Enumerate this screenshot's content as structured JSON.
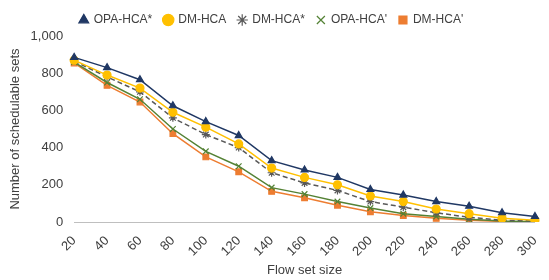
{
  "chart_data": {
    "type": "line",
    "x_label": "Flow set size",
    "y_label": "Number of schedulable sets",
    "categories": [
      20,
      40,
      60,
      80,
      100,
      120,
      140,
      160,
      180,
      200,
      220,
      240,
      260,
      280,
      300
    ],
    "series": [
      {
        "name": "OPA-HCA*",
        "color": "#203864",
        "marker": "triangle",
        "line_style": "solid",
        "values": [
          885,
          830,
          765,
          625,
          540,
          465,
          330,
          280,
          240,
          175,
          145,
          110,
          85,
          50,
          30
        ]
      },
      {
        "name": "DM-HCA",
        "color": "#ffc000",
        "marker": "circle",
        "line_style": "solid",
        "values": [
          870,
          790,
          720,
          590,
          510,
          420,
          290,
          240,
          200,
          140,
          110,
          70,
          45,
          20,
          10
        ]
      },
      {
        "name": "DM-HCA*",
        "color": "#595959",
        "marker": "star",
        "line_style": "dashed",
        "values": [
          865,
          780,
          700,
          560,
          470,
          400,
          265,
          210,
          170,
          110,
          80,
          50,
          25,
          10,
          5
        ]
      },
      {
        "name": "OPA-HCA'",
        "color": "#548235",
        "marker": "x",
        "line_style": "solid",
        "values": [
          860,
          750,
          660,
          500,
          380,
          300,
          185,
          150,
          110,
          75,
          45,
          30,
          15,
          5,
          2
        ]
      },
      {
        "name": "DM-HCA'",
        "color": "#ed7d31",
        "marker": "square",
        "line_style": "solid",
        "values": [
          855,
          735,
          645,
          475,
          350,
          270,
          165,
          130,
          90,
          55,
          35,
          20,
          10,
          3,
          1
        ]
      }
    ],
    "ylim": [
      0,
      1000
    ],
    "yticks": [
      0,
      200,
      400,
      600,
      800,
      1000
    ],
    "grid": false,
    "legend": "top"
  }
}
